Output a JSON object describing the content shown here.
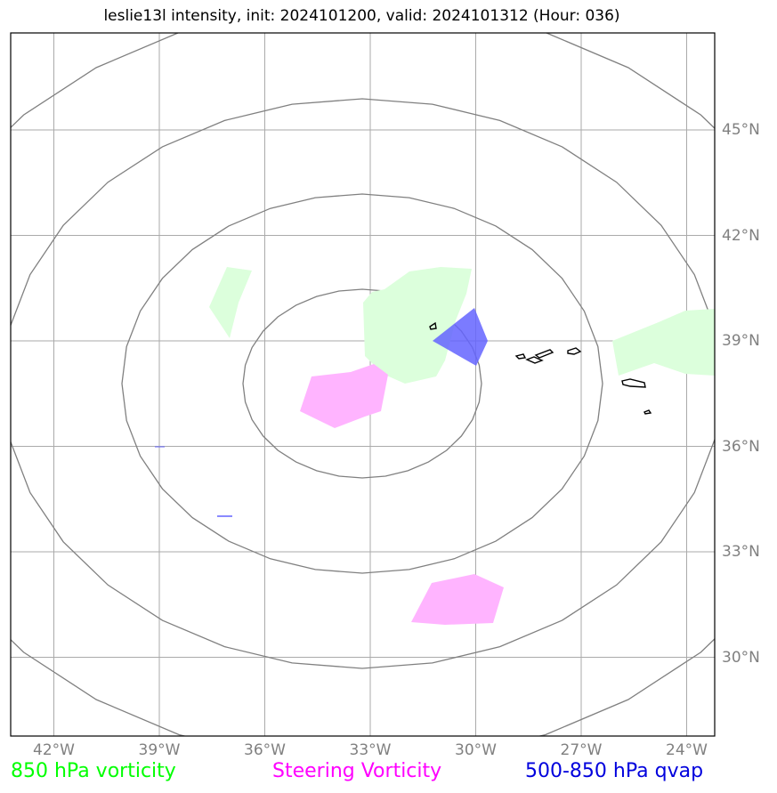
{
  "title": "leslie13l intensity, init: 2024101200, valid: 2024101312 (Hour: 036)",
  "map": {
    "lon_labels": [
      {
        "lon": -42,
        "text": "42°W"
      },
      {
        "lon": -39,
        "text": "39°W"
      },
      {
        "lon": -36,
        "text": "36°W"
      },
      {
        "lon": -33,
        "text": "33°W"
      },
      {
        "lon": -30,
        "text": "30°W"
      },
      {
        "lon": -27,
        "text": "27°W"
      },
      {
        "lon": -24,
        "text": "24°W"
      }
    ],
    "lat_labels": [
      {
        "lat": 45,
        "text": "45°N"
      },
      {
        "lat": 42,
        "text": "42°N"
      },
      {
        "lat": 39,
        "text": "39°N"
      },
      {
        "lat": 36,
        "text": "36°N"
      },
      {
        "lat": 33,
        "text": "33°N"
      },
      {
        "lat": 30,
        "text": "30°N"
      }
    ],
    "colors": {
      "gridline": "#aaaaaa",
      "range_ring": "#808080",
      "vorticity_850": "#dcffdc",
      "steering_vorticity": "#ffb4ff",
      "qvap": "#6464ff",
      "land": "#000000"
    }
  },
  "legend": {
    "vorticity_850": {
      "text": "850 hPa vorticity",
      "color": "#00ff00"
    },
    "steering": {
      "text": "Steering Vorticity",
      "color": "#ff00ff"
    },
    "qvap": {
      "text": "500-850 hPa qvap",
      "color": "#0000dd"
    }
  }
}
